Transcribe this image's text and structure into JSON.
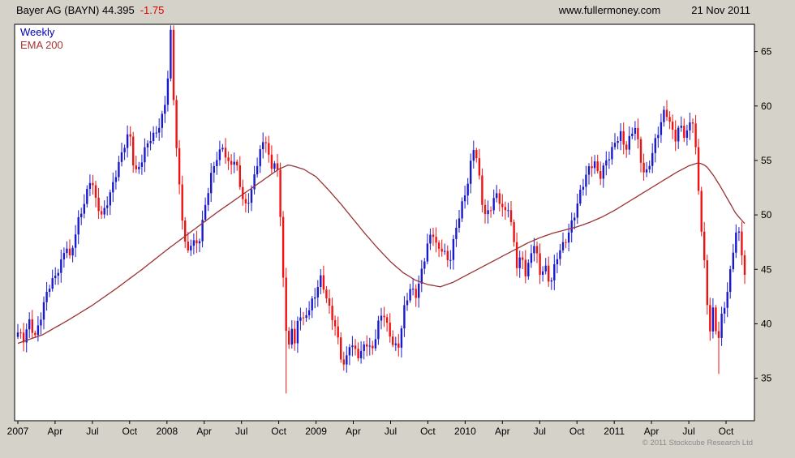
{
  "header": {
    "title": "Bayer AG (BAYN) 44.395",
    "change": "-1.75",
    "website": "www.fullermoney.com",
    "date": "21 Nov 2011"
  },
  "legend": {
    "weekly": "Weekly",
    "ema": "EMA 200"
  },
  "footer": {
    "copyright": "© 2011 Stockcube Research Ltd"
  },
  "colors": {
    "up": "#1a1acd",
    "down": "#ee1212",
    "ema": "#993333",
    "background": "#d5d2ca",
    "plot_bg": "#ffffff",
    "change_text": "#dd0000"
  },
  "chart_data": {
    "type": "candlestick",
    "title": "Bayer AG (BAYN) weekly candles with 200-period EMA, Jan 2007 - Nov 2011",
    "last_price": 44.395,
    "last_change": -1.75,
    "ylim": [
      31.1,
      67.5
    ],
    "yticks": [
      35,
      40,
      45,
      50,
      55,
      60,
      65
    ],
    "xticks": [
      {
        "month": 0,
        "label": "2007"
      },
      {
        "month": 3,
        "label": "Apr"
      },
      {
        "month": 6,
        "label": "Jul"
      },
      {
        "month": 9,
        "label": "Oct"
      },
      {
        "month": 12,
        "label": "2008"
      },
      {
        "month": 15,
        "label": "Apr"
      },
      {
        "month": 18,
        "label": "Jul"
      },
      {
        "month": 21,
        "label": "Oct"
      },
      {
        "month": 24,
        "label": "2009"
      },
      {
        "month": 27,
        "label": "Apr"
      },
      {
        "month": 30,
        "label": "Jul"
      },
      {
        "month": 33,
        "label": "Oct"
      },
      {
        "month": 36,
        "label": "2010"
      },
      {
        "month": 39,
        "label": "Apr"
      },
      {
        "month": 42,
        "label": "Jul"
      },
      {
        "month": 45,
        "label": "Oct"
      },
      {
        "month": 48,
        "label": "2011"
      },
      {
        "month": 51,
        "label": "Apr"
      },
      {
        "month": 54,
        "label": "Jul"
      },
      {
        "month": 57,
        "label": "Oct"
      }
    ],
    "months_total": 58.5,
    "weeks": 253,
    "close_anchors": [
      [
        0,
        39.2
      ],
      [
        0.5,
        38.3
      ],
      [
        0.9,
        40.2
      ],
      [
        1.4,
        39.0
      ],
      [
        1.9,
        41.0
      ],
      [
        2.4,
        43.0
      ],
      [
        2.9,
        44.0
      ],
      [
        3.4,
        45.5
      ],
      [
        3.9,
        47.5
      ],
      [
        4.2,
        45.8
      ],
      [
        4.8,
        49.0
      ],
      [
        5.4,
        51.5
      ],
      [
        5.9,
        53.8
      ],
      [
        6.3,
        51.0
      ],
      [
        6.8,
        49.6
      ],
      [
        7.4,
        52.0
      ],
      [
        7.9,
        54.0
      ],
      [
        8.5,
        56.0
      ],
      [
        9.0,
        57.5
      ],
      [
        9.4,
        53.8
      ],
      [
        9.9,
        55.0
      ],
      [
        10.4,
        56.5
      ],
      [
        10.9,
        57.0
      ],
      [
        11.5,
        58.5
      ],
      [
        12.0,
        61.5
      ],
      [
        12.3,
        66.8
      ],
      [
        12.6,
        59.0
      ],
      [
        12.9,
        53.5
      ],
      [
        13.2,
        50.0
      ],
      [
        13.6,
        46.3
      ],
      [
        14.0,
        48.0
      ],
      [
        14.5,
        47.0
      ],
      [
        15.0,
        50.0
      ],
      [
        15.5,
        53.5
      ],
      [
        16.0,
        55.5
      ],
      [
        16.5,
        56.2
      ],
      [
        17.0,
        54.2
      ],
      [
        17.5,
        55.2
      ],
      [
        18.0,
        52.2
      ],
      [
        18.4,
        50.6
      ],
      [
        19.0,
        53.0
      ],
      [
        19.5,
        56.0
      ],
      [
        20.0,
        57.2
      ],
      [
        20.4,
        54.0
      ],
      [
        20.8,
        55.5
      ],
      [
        21.1,
        50.0
      ],
      [
        21.4,
        43.5
      ],
      [
        21.7,
        36.6
      ],
      [
        22.0,
        40.5
      ],
      [
        22.3,
        38.0
      ],
      [
        22.6,
        41.2
      ],
      [
        23.0,
        40.0
      ],
      [
        23.5,
        41.5
      ],
      [
        24.0,
        43.0
      ],
      [
        24.3,
        44.6
      ],
      [
        24.7,
        43.0
      ],
      [
        25.1,
        41.0
      ],
      [
        25.6,
        39.5
      ],
      [
        26.0,
        37.2
      ],
      [
        26.3,
        36.2
      ],
      [
        26.7,
        38.2
      ],
      [
        27.1,
        37.4
      ],
      [
        27.5,
        36.8
      ],
      [
        28.0,
        38.6
      ],
      [
        28.5,
        37.6
      ],
      [
        29.0,
        39.8
      ],
      [
        29.4,
        41.0
      ],
      [
        29.8,
        39.4
      ],
      [
        30.2,
        38.4
      ],
      [
        30.6,
        37.8
      ],
      [
        31.1,
        41.2
      ],
      [
        31.6,
        43.2
      ],
      [
        32.0,
        42.6
      ],
      [
        32.5,
        45.0
      ],
      [
        33.0,
        47.4
      ],
      [
        33.4,
        48.2
      ],
      [
        33.8,
        46.6
      ],
      [
        34.2,
        47.2
      ],
      [
        34.7,
        45.6
      ],
      [
        35.2,
        48.2
      ],
      [
        35.7,
        50.6
      ],
      [
        36.1,
        52.4
      ],
      [
        36.4,
        54.6
      ],
      [
        36.7,
        56.4
      ],
      [
        37.0,
        55.0
      ],
      [
        37.3,
        51.2
      ],
      [
        37.7,
        49.6
      ],
      [
        38.1,
        50.8
      ],
      [
        38.4,
        52.2
      ],
      [
        38.8,
        51.4
      ],
      [
        39.2,
        50.0
      ],
      [
        39.5,
        50.6
      ],
      [
        39.8,
        48.2
      ],
      [
        40.2,
        45.2
      ],
      [
        40.5,
        46.6
      ],
      [
        40.9,
        44.6
      ],
      [
        41.3,
        46.2
      ],
      [
        41.6,
        47.4
      ],
      [
        42.0,
        44.4
      ],
      [
        42.4,
        45.6
      ],
      [
        42.8,
        43.8
      ],
      [
        43.2,
        45.2
      ],
      [
        43.6,
        46.6
      ],
      [
        44.0,
        47.2
      ],
      [
        44.4,
        48.8
      ],
      [
        44.8,
        50.2
      ],
      [
        45.2,
        51.8
      ],
      [
        45.6,
        53.0
      ],
      [
        46.0,
        54.2
      ],
      [
        46.4,
        55.0
      ],
      [
        46.8,
        53.6
      ],
      [
        47.2,
        54.6
      ],
      [
        47.7,
        55.4
      ],
      [
        48.1,
        56.6
      ],
      [
        48.5,
        57.6
      ],
      [
        48.9,
        56.2
      ],
      [
        49.3,
        57.2
      ],
      [
        49.7,
        58.0
      ],
      [
        50.1,
        55.0
      ],
      [
        50.5,
        53.6
      ],
      [
        50.9,
        55.2
      ],
      [
        51.3,
        56.8
      ],
      [
        51.7,
        58.0
      ],
      [
        52.1,
        59.6
      ],
      [
        52.5,
        58.4
      ],
      [
        52.9,
        57.2
      ],
      [
        53.3,
        58.4
      ],
      [
        53.7,
        57.0
      ],
      [
        54.0,
        57.6
      ],
      [
        54.25,
        59.4
      ],
      [
        54.6,
        55.5
      ],
      [
        54.9,
        50.5
      ],
      [
        55.2,
        46.5
      ],
      [
        55.5,
        41.5
      ],
      [
        55.75,
        39.0
      ],
      [
        56.0,
        41.5
      ],
      [
        56.3,
        37.8
      ],
      [
        56.6,
        40.5
      ],
      [
        57.0,
        42.5
      ],
      [
        57.3,
        44.5
      ],
      [
        57.6,
        47.0
      ],
      [
        57.9,
        48.8
      ],
      [
        58.2,
        47.0
      ],
      [
        58.5,
        44.4
      ]
    ],
    "ema_anchors": [
      [
        0,
        38.2
      ],
      [
        2,
        39.0
      ],
      [
        4,
        40.3
      ],
      [
        6,
        41.7
      ],
      [
        8,
        43.3
      ],
      [
        10,
        45.0
      ],
      [
        12,
        46.8
      ],
      [
        14,
        48.5
      ],
      [
        16,
        50.2
      ],
      [
        18,
        51.8
      ],
      [
        19.5,
        53.0
      ],
      [
        21,
        54.2
      ],
      [
        21.8,
        54.6
      ],
      [
        23,
        54.2
      ],
      [
        24,
        53.5
      ],
      [
        25,
        52.3
      ],
      [
        26,
        51.0
      ],
      [
        27,
        49.6
      ],
      [
        28,
        48.2
      ],
      [
        29,
        46.9
      ],
      [
        30,
        45.7
      ],
      [
        31,
        44.7
      ],
      [
        32,
        44.0
      ],
      [
        33,
        43.6
      ],
      [
        34,
        43.4
      ],
      [
        35,
        43.8
      ],
      [
        36,
        44.4
      ],
      [
        37,
        45.0
      ],
      [
        38,
        45.6
      ],
      [
        39,
        46.2
      ],
      [
        40,
        46.8
      ],
      [
        41,
        47.4
      ],
      [
        42,
        47.9
      ],
      [
        43,
        48.3
      ],
      [
        44,
        48.6
      ],
      [
        45,
        48.9
      ],
      [
        46,
        49.3
      ],
      [
        47,
        49.8
      ],
      [
        48,
        50.4
      ],
      [
        49,
        51.1
      ],
      [
        50,
        51.8
      ],
      [
        51,
        52.5
      ],
      [
        52,
        53.2
      ],
      [
        53,
        53.9
      ],
      [
        54,
        54.5
      ],
      [
        54.8,
        54.8
      ],
      [
        55.4,
        54.5
      ],
      [
        56,
        53.6
      ],
      [
        56.6,
        52.5
      ],
      [
        57.2,
        51.3
      ],
      [
        57.8,
        50.1
      ],
      [
        58.5,
        49.2
      ]
    ],
    "wick_spikes": [
      {
        "month": 21.7,
        "low": 33.6
      },
      {
        "month": 26.3,
        "low": 35.7
      },
      {
        "month": 56.3,
        "low": 35.4
      }
    ]
  }
}
